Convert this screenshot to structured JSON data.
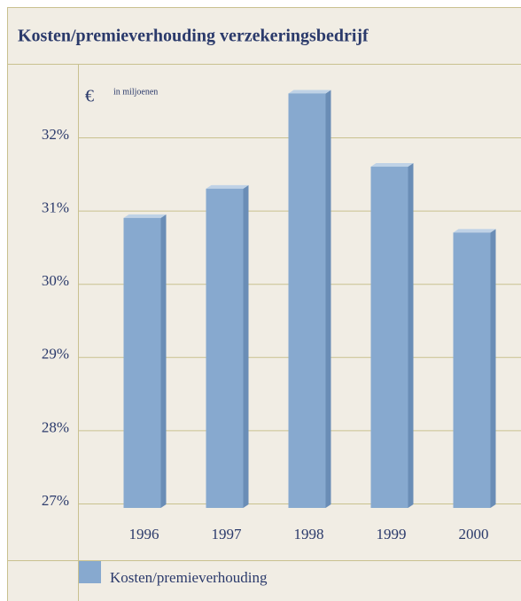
{
  "chart_data": {
    "type": "bar",
    "title": "Kosten/premieverhouding verzekeringsbedrijf",
    "annotations": [
      "€",
      "in miljoenen"
    ],
    "categories": [
      "1996",
      "1997",
      "1998",
      "1999",
      "2000"
    ],
    "series": [
      {
        "name": "Kosten/premieverhouding",
        "color": "#87a9cf",
        "values": [
          30.9,
          31.3,
          32.6,
          31.6,
          30.7
        ]
      }
    ],
    "ylim": [
      27,
      33
    ],
    "yticks": [
      {
        "value": 27,
        "label": "27%"
      },
      {
        "value": 28,
        "label": "28%"
      },
      {
        "value": 29,
        "label": "29%"
      },
      {
        "value": 30,
        "label": "30%"
      },
      {
        "value": 31,
        "label": "31%"
      },
      {
        "value": 32,
        "label": "32%"
      }
    ],
    "grid": true,
    "legend": "bottom"
  }
}
